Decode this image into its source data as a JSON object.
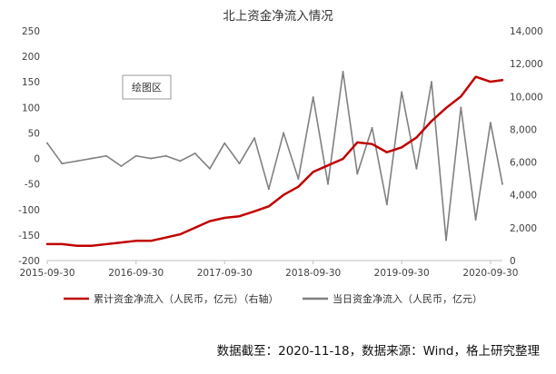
{
  "chart_data": {
    "type": "line",
    "title": "北上资金净流入情况",
    "plot_area_label": "绘图区",
    "x_tick_labels": [
      "2015-09-30",
      "2016-09-30",
      "2017-09-30",
      "2018-09-30",
      "2019-09-30",
      "2020-09-30"
    ],
    "x_range": [
      "2015-09-30",
      "2020-11-18"
    ],
    "left_axis": {
      "ylim": [
        -200,
        250
      ],
      "ticks": [
        -200,
        -150,
        -100,
        -50,
        0,
        50,
        100,
        150,
        200,
        250
      ],
      "tick_labels": [
        "-200",
        "-150",
        "-100",
        "-50",
        "0",
        "50",
        "100",
        "150",
        "200",
        "250"
      ]
    },
    "right_axis": {
      "ylim": [
        0,
        14000
      ],
      "ticks": [
        0,
        2000,
        4000,
        6000,
        8000,
        10000,
        12000,
        14000
      ],
      "tick_labels": [
        "0",
        "2,000",
        "4,000",
        "6,000",
        "8,000",
        "10,000",
        "12,000",
        "14,000"
      ]
    },
    "grid": false,
    "legend_position": "bottom",
    "series": [
      {
        "name": "累计资金净流入（人民币，亿元）（右轴）",
        "axis": "right",
        "color": "#C00000",
        "x": [
          "2015-09-30",
          "2015-11-30",
          "2016-01-31",
          "2016-03-31",
          "2016-05-31",
          "2016-07-31",
          "2016-09-30",
          "2016-11-30",
          "2017-01-31",
          "2017-03-31",
          "2017-05-31",
          "2017-07-31",
          "2017-09-30",
          "2017-11-30",
          "2018-01-31",
          "2018-03-31",
          "2018-05-31",
          "2018-07-31",
          "2018-09-30",
          "2018-11-30",
          "2019-01-31",
          "2019-03-31",
          "2019-05-31",
          "2019-07-31",
          "2019-09-30",
          "2019-11-30",
          "2020-01-31",
          "2020-03-31",
          "2020-05-31",
          "2020-07-31",
          "2020-09-30",
          "2020-11-18"
        ],
        "values": [
          1000,
          1000,
          900,
          900,
          1000,
          1100,
          1200,
          1200,
          1400,
          1600,
          2000,
          2400,
          2600,
          2700,
          3000,
          3300,
          4000,
          4500,
          5400,
          5800,
          6200,
          7200,
          7100,
          6600,
          6900,
          7500,
          8500,
          9300,
          10000,
          11200,
          10900,
          11000
        ]
      },
      {
        "name": "当日资金净流入（人民币，亿元）",
        "axis": "left",
        "color": "#808080",
        "x": [
          "2015-09-30",
          "2015-11-30",
          "2016-01-31",
          "2016-03-31",
          "2016-05-31",
          "2016-07-31",
          "2016-09-30",
          "2016-11-30",
          "2017-01-31",
          "2017-03-31",
          "2017-05-31",
          "2017-07-31",
          "2017-09-30",
          "2017-11-30",
          "2018-01-31",
          "2018-03-31",
          "2018-05-31",
          "2018-07-31",
          "2018-09-30",
          "2018-11-30",
          "2019-01-31",
          "2019-03-31",
          "2019-05-31",
          "2019-07-31",
          "2019-09-30",
          "2019-11-30",
          "2020-01-31",
          "2020-03-31",
          "2020-05-31",
          "2020-07-31",
          "2020-09-30",
          "2020-11-18"
        ],
        "values": [
          30,
          -10,
          -5,
          0,
          5,
          -15,
          5,
          0,
          5,
          -5,
          10,
          -20,
          30,
          -10,
          40,
          -60,
          50,
          -40,
          120,
          -50,
          170,
          -30,
          60,
          -90,
          130,
          -20,
          150,
          -160,
          100,
          -120,
          70,
          -50
        ]
      }
    ]
  },
  "footer": {
    "source_text": "数据截至：2020-11-18，数据来源：Wind，格上研究整理"
  }
}
